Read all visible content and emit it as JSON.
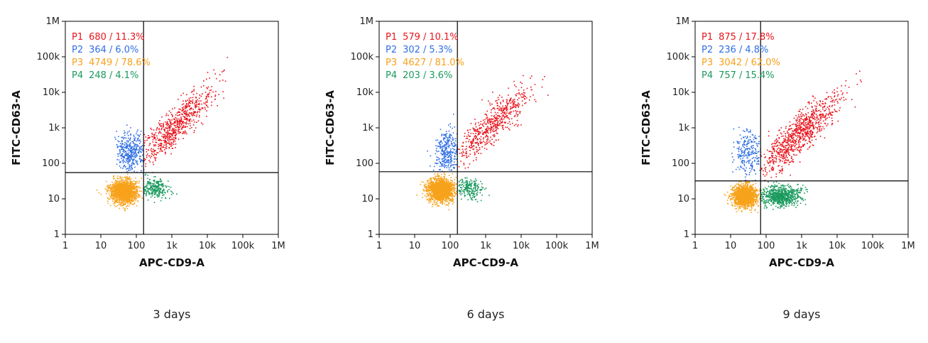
{
  "chart_data": [
    {
      "type": "scatter",
      "title": "",
      "xlabel": "APC-CD9-A",
      "ylabel": "FITC-CD63-A",
      "caption": "3 days",
      "xscale": "log",
      "yscale": "log",
      "xlim": [
        1,
        1000000
      ],
      "ylim": [
        1,
        1000000
      ],
      "x_ticks": [
        {
          "value": 1,
          "label": "1"
        },
        {
          "value": 10,
          "label": "10"
        },
        {
          "value": 100,
          "label": "100"
        },
        {
          "value": 1000,
          "label": "1k"
        },
        {
          "value": 10000,
          "label": "10k"
        },
        {
          "value": 100000,
          "label": "100k"
        },
        {
          "value": 1000000,
          "label": "1M"
        }
      ],
      "y_ticks": [
        {
          "value": 1,
          "label": "1"
        },
        {
          "value": 10,
          "label": "10"
        },
        {
          "value": 100,
          "label": "100"
        },
        {
          "value": 1000,
          "label": "1k"
        },
        {
          "value": 10000,
          "label": "10k"
        },
        {
          "value": 100000,
          "label": "100k"
        },
        {
          "value": 1000000,
          "label": "1M"
        }
      ],
      "gate": {
        "x": 160,
        "y": 55
      },
      "populations": [
        {
          "name": "P1",
          "count": "680",
          "percent": "11.3%",
          "color": "#e8141c",
          "cx": 1200,
          "cy": 1100,
          "sx": 0.55,
          "sy": 0.55,
          "corr": 0.88,
          "n": 680,
          "min": [
            160,
            55
          ],
          "max": [
            100000,
            100000
          ]
        },
        {
          "name": "P2",
          "count": "364",
          "percent": "6.0%",
          "color": "#2f6fe4",
          "cx": 70,
          "cy": 200,
          "sx": 0.2,
          "sy": 0.3,
          "corr": 0,
          "n": 364,
          "min": [
            8,
            55
          ],
          "max": [
            160,
            2500
          ]
        },
        {
          "name": "P3",
          "count": "4749",
          "percent": "78.6%",
          "color": "#f7a21b",
          "cx": 45,
          "cy": 16,
          "sx": 0.18,
          "sy": 0.16,
          "corr": 0,
          "n": 1700,
          "min": [
            7,
            2
          ],
          "max": [
            160,
            55
          ]
        },
        {
          "name": "P4",
          "count": "248",
          "percent": "4.1%",
          "color": "#1a9a5e",
          "cx": 340,
          "cy": 20,
          "sx": 0.2,
          "sy": 0.14,
          "corr": 0,
          "n": 248,
          "min": [
            160,
            5
          ],
          "max": [
            1500,
            55
          ]
        }
      ]
    },
    {
      "type": "scatter",
      "title": "",
      "xlabel": "APC-CD9-A",
      "ylabel": "FITC-CD63-A",
      "caption": "6 days",
      "xscale": "log",
      "yscale": "log",
      "xlim": [
        1,
        1000000
      ],
      "ylim": [
        1,
        1000000
      ],
      "x_ticks": [
        {
          "value": 1,
          "label": "1"
        },
        {
          "value": 10,
          "label": "10"
        },
        {
          "value": 100,
          "label": "100"
        },
        {
          "value": 1000,
          "label": "1k"
        },
        {
          "value": 10000,
          "label": "10k"
        },
        {
          "value": 100000,
          "label": "100k"
        },
        {
          "value": 1000000,
          "label": "1M"
        }
      ],
      "y_ticks": [
        {
          "value": 1,
          "label": "1"
        },
        {
          "value": 10,
          "label": "10"
        },
        {
          "value": 100,
          "label": "100"
        },
        {
          "value": 1000,
          "label": "1k"
        },
        {
          "value": 10000,
          "label": "10k"
        },
        {
          "value": 100000,
          "label": "100k"
        },
        {
          "value": 1000000,
          "label": "1M"
        }
      ],
      "gate": {
        "x": 160,
        "y": 58
      },
      "populations": [
        {
          "name": "P1",
          "count": "579",
          "percent": "10.1%",
          "color": "#e8141c",
          "cx": 1400,
          "cy": 1100,
          "sx": 0.55,
          "sy": 0.55,
          "corr": 0.88,
          "n": 579,
          "min": [
            160,
            58
          ],
          "max": [
            80000,
            80000
          ]
        },
        {
          "name": "P2",
          "count": "302",
          "percent": "5.3%",
          "color": "#2f6fe4",
          "cx": 85,
          "cy": 200,
          "sx": 0.18,
          "sy": 0.32,
          "corr": 0,
          "n": 302,
          "min": [
            20,
            58
          ],
          "max": [
            160,
            4000
          ]
        },
        {
          "name": "P3",
          "count": "4627",
          "percent": "81.0%",
          "color": "#f7a21b",
          "cx": 55,
          "cy": 18,
          "sx": 0.18,
          "sy": 0.16,
          "corr": 0,
          "n": 1700,
          "min": [
            10,
            2
          ],
          "max": [
            160,
            58
          ]
        },
        {
          "name": "P4",
          "count": "203",
          "percent": "3.6%",
          "color": "#1a9a5e",
          "cx": 340,
          "cy": 20,
          "sx": 0.2,
          "sy": 0.14,
          "corr": 0,
          "n": 203,
          "min": [
            160,
            5
          ],
          "max": [
            1500,
            58
          ]
        }
      ]
    },
    {
      "type": "scatter",
      "title": "",
      "xlabel": "APC-CD9-A",
      "ylabel": "FITC-CD63-A",
      "caption": "9 days",
      "xscale": "log",
      "yscale": "log",
      "xlim": [
        1,
        1000000
      ],
      "ylim": [
        1,
        1000000
      ],
      "x_ticks": [
        {
          "value": 1,
          "label": "1"
        },
        {
          "value": 10,
          "label": "10"
        },
        {
          "value": 100,
          "label": "100"
        },
        {
          "value": 1000,
          "label": "1k"
        },
        {
          "value": 10000,
          "label": "10k"
        },
        {
          "value": 100000,
          "label": "100k"
        },
        {
          "value": 1000000,
          "label": "1M"
        }
      ],
      "y_ticks": [
        {
          "value": 1,
          "label": "1"
        },
        {
          "value": 10,
          "label": "10"
        },
        {
          "value": 100,
          "label": "100"
        },
        {
          "value": 1000,
          "label": "1k"
        },
        {
          "value": 10000,
          "label": "10k"
        },
        {
          "value": 100000,
          "label": "100k"
        },
        {
          "value": 1000000,
          "label": "1M"
        }
      ],
      "gate": {
        "x": 70,
        "y": 32
      },
      "populations": [
        {
          "name": "P1",
          "count": "875",
          "percent": "17.8%",
          "color": "#e8141c",
          "cx": 900,
          "cy": 700,
          "sx": 0.55,
          "sy": 0.55,
          "corr": 0.85,
          "n": 875,
          "min": [
            70,
            32
          ],
          "max": [
            200000,
            100000
          ]
        },
        {
          "name": "P2",
          "count": "236",
          "percent": "4.8%",
          "color": "#2f6fe4",
          "cx": 32,
          "cy": 200,
          "sx": 0.2,
          "sy": 0.32,
          "corr": 0,
          "n": 236,
          "min": [
            10,
            32
          ],
          "max": [
            70,
            2500
          ]
        },
        {
          "name": "P3",
          "count": "3042",
          "percent": "62.0%",
          "color": "#f7a21b",
          "cx": 25,
          "cy": 12,
          "sx": 0.17,
          "sy": 0.15,
          "corr": 0,
          "n": 1500,
          "min": [
            6,
            2
          ],
          "max": [
            70,
            32
          ]
        },
        {
          "name": "P4",
          "count": "757",
          "percent": "15.4%",
          "color": "#1a9a5e",
          "cx": 260,
          "cy": 12,
          "sx": 0.28,
          "sy": 0.14,
          "corr": 0,
          "n": 757,
          "min": [
            70,
            5
          ],
          "max": [
            4000,
            32
          ]
        }
      ]
    }
  ]
}
